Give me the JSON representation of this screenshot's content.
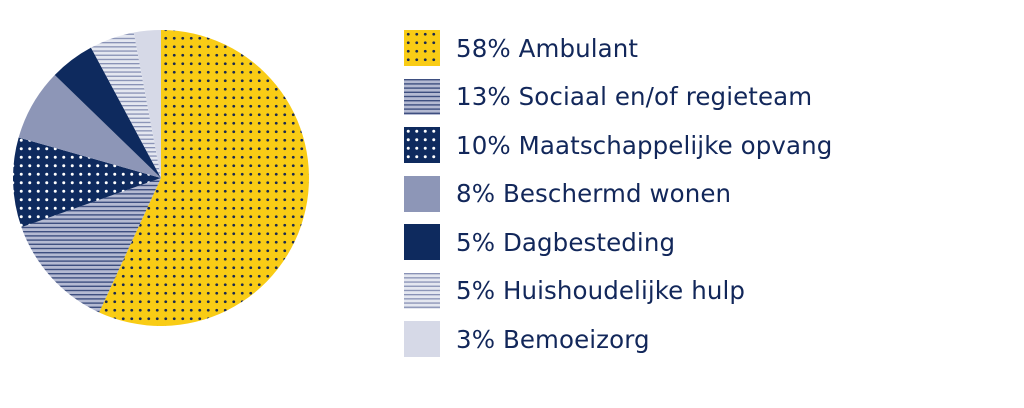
{
  "chart_data": {
    "type": "pie",
    "title": "",
    "legend_position": "right",
    "slices": [
      {
        "label": "Ambulant",
        "display": "58% Ambulant",
        "value": 58,
        "pattern": "dots-dark-on-yellow"
      },
      {
        "label": "Sociaal en/of regieteam",
        "display": "13% Sociaal en/of regieteam",
        "value": 13,
        "pattern": "stripes-navy-on-lightblue"
      },
      {
        "label": "Maatschappelijke opvang",
        "display": "10% Maatschappelijke opvang",
        "value": 10,
        "pattern": "dots-white-on-navy"
      },
      {
        "label": "Beschermd wonen",
        "display": "8% Beschermd wonen",
        "value": 8,
        "pattern": "solid-grayblue"
      },
      {
        "label": "Dagbesteding",
        "display": "5% Dagbesteding",
        "value": 5,
        "pattern": "solid-navy"
      },
      {
        "label": "Huishoudelijke hulp",
        "display": "5% Huishoudelijke hulp",
        "value": 5,
        "pattern": "stripes-on-pale"
      },
      {
        "label": "Bemoeizorg",
        "display": "3% Bemoeizorg",
        "value": 3,
        "pattern": "solid-pale"
      }
    ]
  },
  "colors": {
    "yellow": "#f9cc15",
    "navy": "#0e2a5e",
    "grayblue": "#8d96b7",
    "lightblue": "#b4bad2",
    "pale": "#d6d9e7",
    "stripe_navy": "#3e4f80",
    "stripe_pale": "#8891b5",
    "dot_dark": "#1b2a4f",
    "dot_white": "#ffffff",
    "text": "#12275a"
  }
}
